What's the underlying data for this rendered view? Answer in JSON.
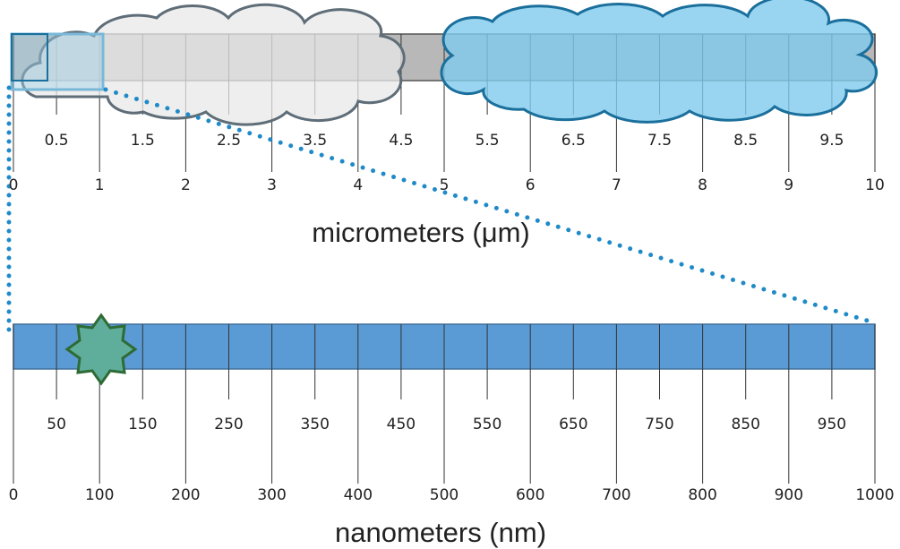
{
  "top_scale": {
    "half_labels": [
      0.5,
      1.5,
      2.5,
      3.5,
      4.5,
      5.5,
      6.5,
      7.5,
      8.5,
      9.5
    ],
    "labels": [
      0,
      1,
      2,
      3,
      4,
      5,
      6,
      7,
      8,
      9,
      10
    ],
    "unit": "micrometers (μm)"
  },
  "bottom_scale": {
    "half_labels": [
      50,
      150,
      250,
      350,
      450,
      550,
      650,
      750,
      850,
      950
    ],
    "labels": [
      0,
      100,
      200,
      300,
      400,
      500,
      600,
      700,
      800,
      900,
      1000
    ],
    "unit": "nanometers (nm)"
  }
}
